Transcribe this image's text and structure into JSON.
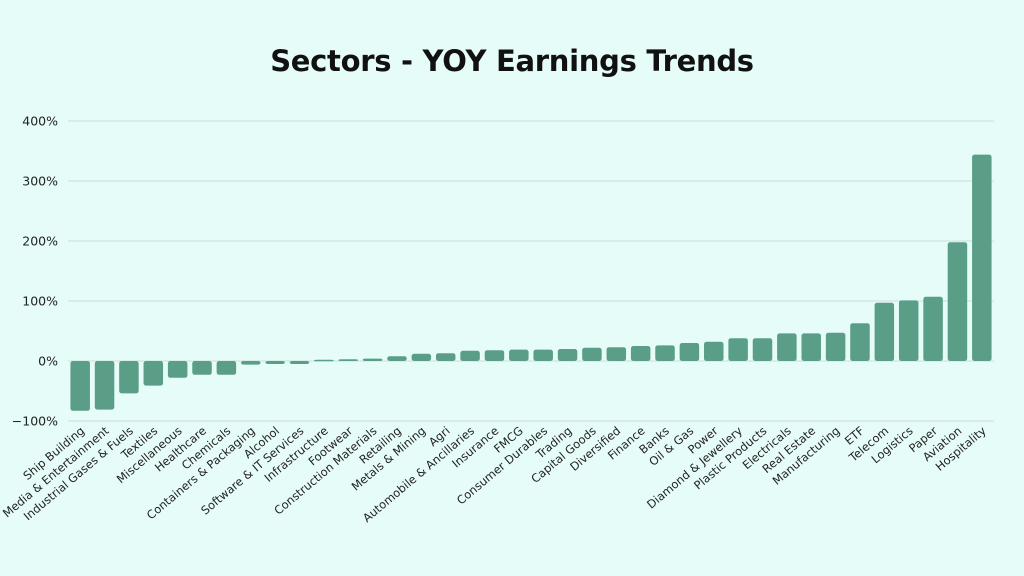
{
  "chart_data": {
    "type": "bar",
    "title": "Sectors - YOY Earnings Trends",
    "xlabel": "",
    "ylabel": "",
    "ylim": [
      -100,
      400
    ],
    "yticks": [
      -100,
      0,
      100,
      200,
      300,
      400
    ],
    "ytick_labels": [
      "−100%",
      "0%",
      "100%",
      "200%",
      "300%",
      "400%"
    ],
    "grid": true,
    "bar_color": "#5a9e87",
    "categories": [
      "Ship Building",
      "Media & Entertainment",
      "Industrial Gases & Fuels",
      "Textiles",
      "Miscellaneous",
      "Healthcare",
      "Chemicals",
      "Containers & Packaging",
      "Alcohol",
      "Software & IT Services",
      "Infrastructure",
      "Footwear",
      "Construction Materials",
      "Retailing",
      "Metals & Mining",
      "Agri",
      "Automobile & Ancillaries",
      "Insurance",
      "FMCG",
      "Consumer Durables",
      "Trading",
      "Capital Goods",
      "Diversified",
      "Finance",
      "Banks",
      "Oil & Gas",
      "Power",
      "Diamond & Jewellery",
      "Plastic Products",
      "Electricals",
      "Real Estate",
      "Manufacturing",
      "ETF",
      "Telecom",
      "Logistics",
      "Paper",
      "Aviation",
      "Hospitality"
    ],
    "values": [
      -83,
      -81,
      -54,
      -41,
      -28,
      -23,
      -23,
      -6,
      -5,
      -5,
      2,
      3,
      4,
      8,
      12,
      13,
      17,
      18,
      19,
      19,
      20,
      22,
      23,
      25,
      26,
      30,
      32,
      38,
      38,
      46,
      46,
      47,
      63,
      97,
      101,
      107,
      198,
      344
    ]
  }
}
